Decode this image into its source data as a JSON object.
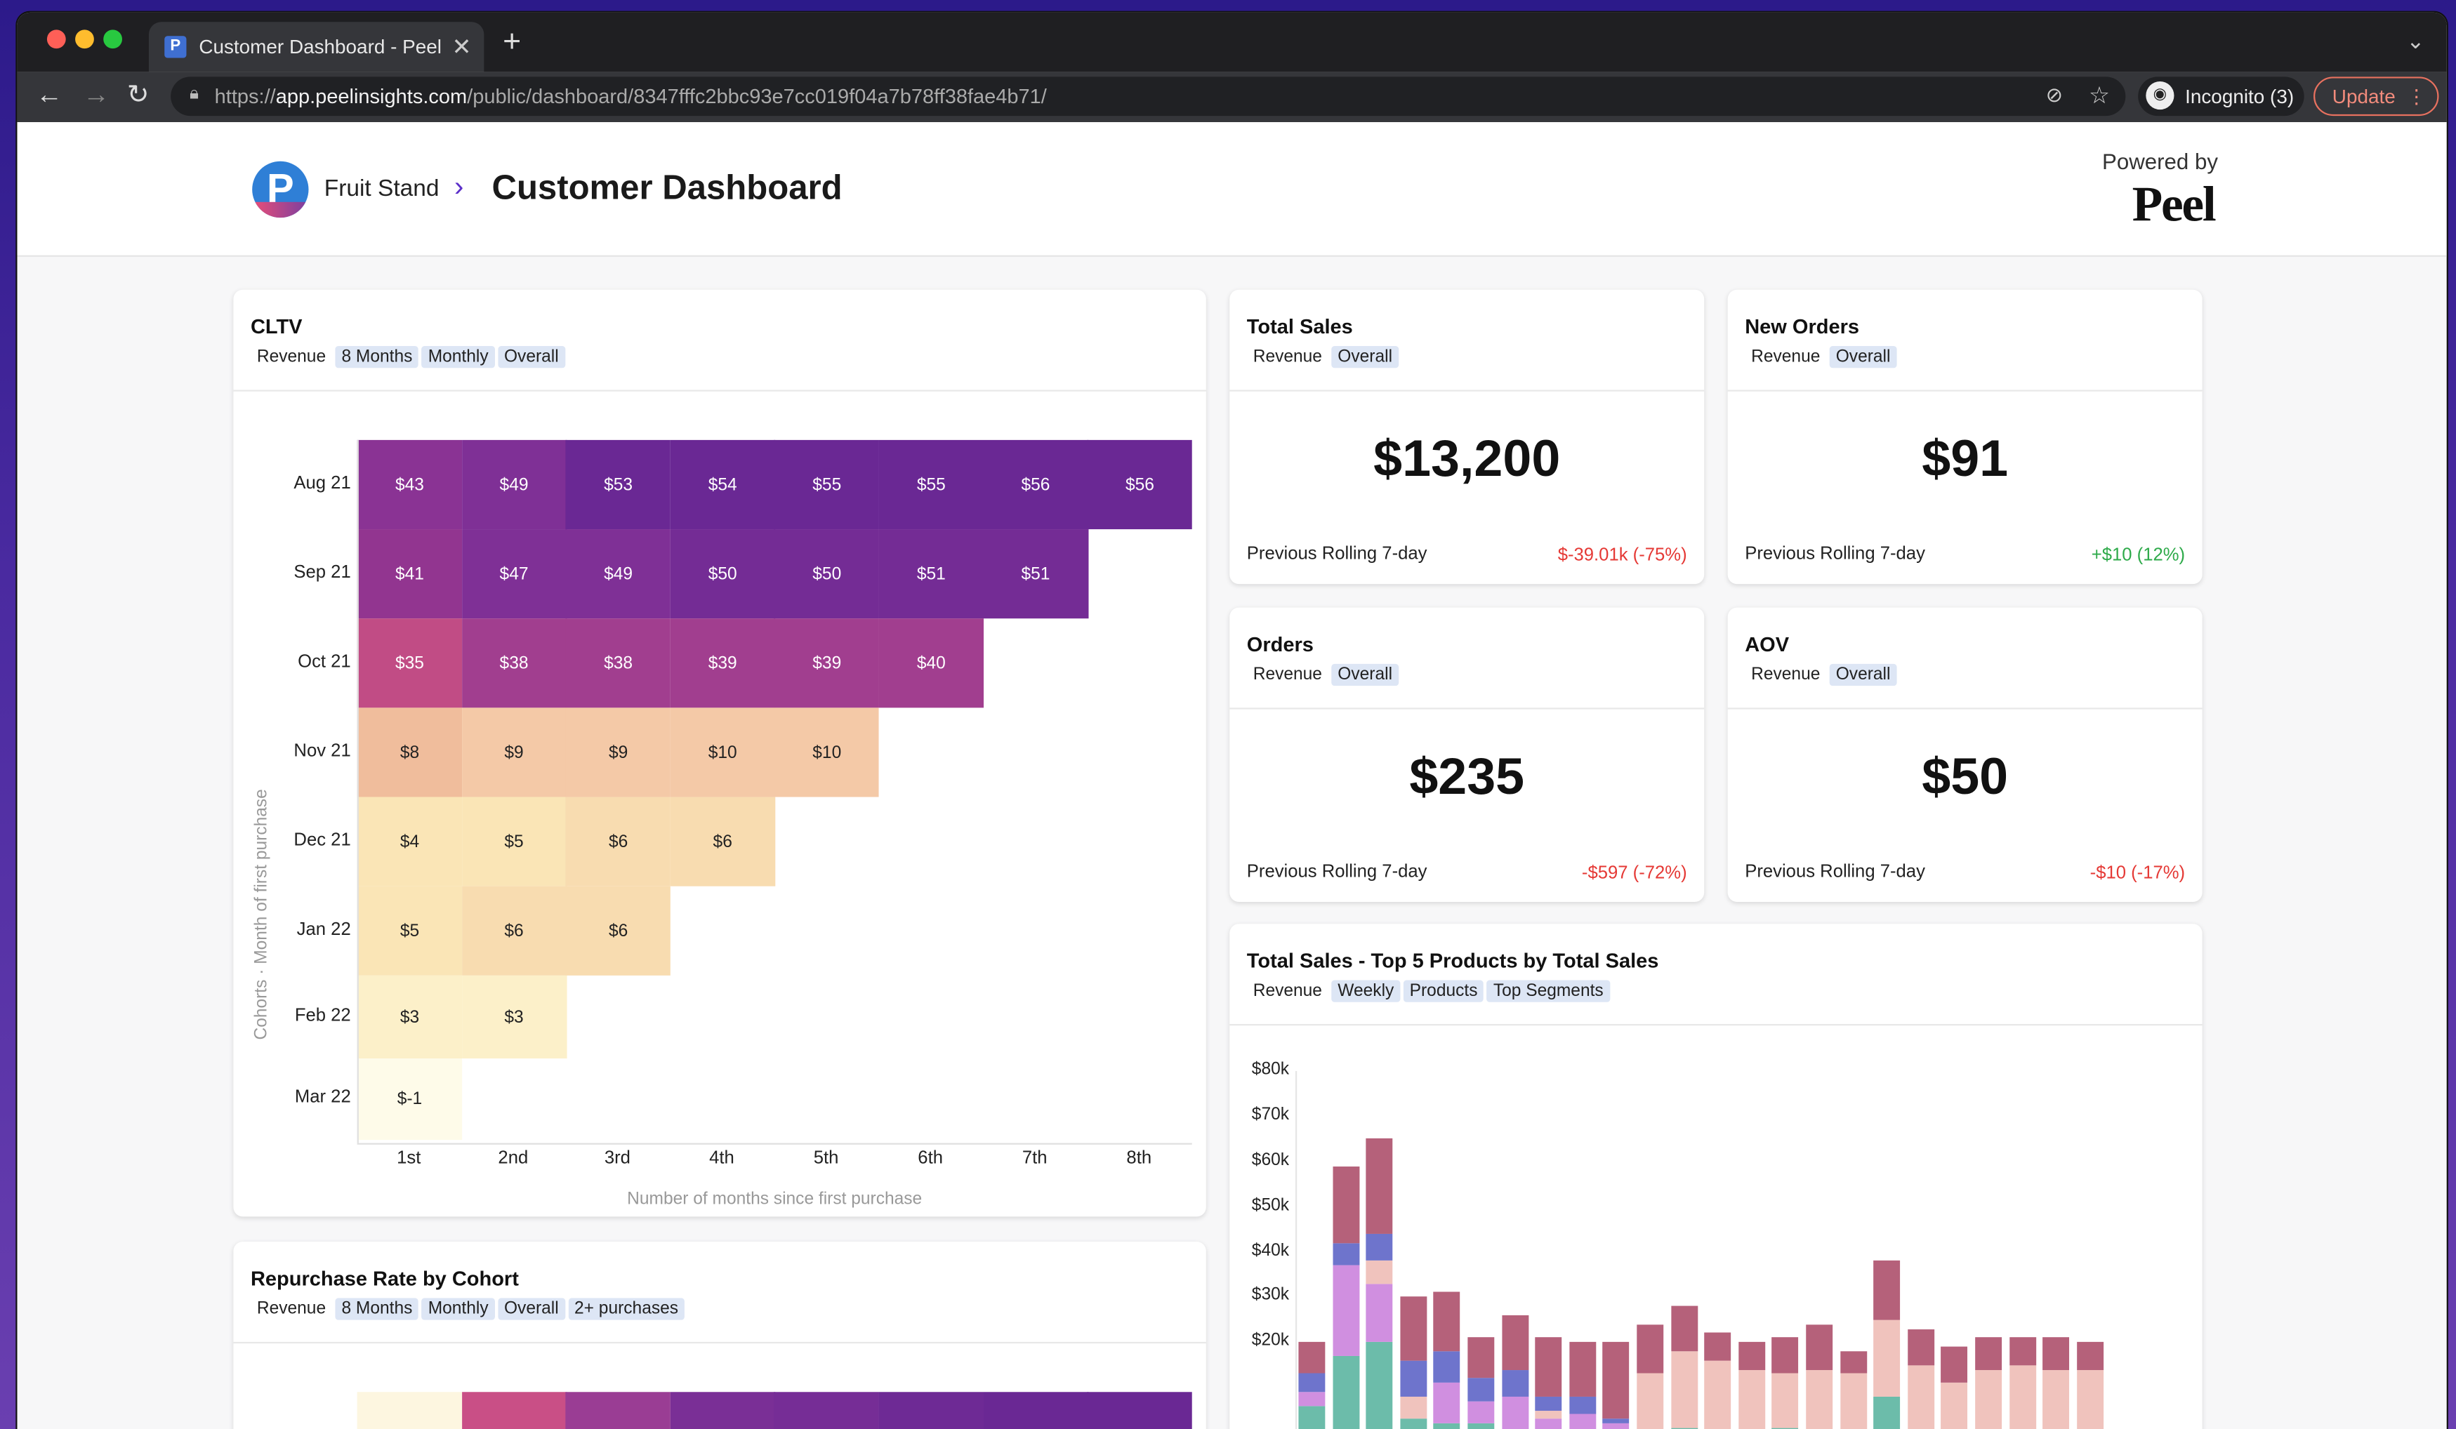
{
  "browser": {
    "tab_title": "Customer Dashboard - Peel",
    "favicon_letter": "P",
    "url_host": "app.peelinsights.com",
    "url_prefix": "https://",
    "url_path": "/public/dashboard/8347fffc2bbc93e7cc019f04a7b78ff38fae4b71/",
    "incognito_label": "Incognito (3)",
    "update_label": "Update"
  },
  "header": {
    "logo_letter": "P",
    "breadcrumb": "Fruit Stand",
    "title": "Customer Dashboard",
    "powered_by": "Powered by",
    "brand": "Peel"
  },
  "cltv": {
    "title": "CLTV",
    "tags": [
      "Revenue",
      "8 Months",
      "Monthly",
      "Overall"
    ],
    "y_axis_label": "Cohorts · Month of first purchase",
    "x_axis_label": "Number of months since first purchase",
    "columns": [
      "1st",
      "2nd",
      "3rd",
      "4th",
      "5th",
      "6th",
      "7th",
      "8th"
    ],
    "rows": [
      {
        "label": "Aug 21",
        "values": [
          "$43",
          "$49",
          "$53",
          "$54",
          "$55",
          "$55",
          "$56",
          "$56"
        ],
        "nums": [
          43,
          49,
          53,
          54,
          55,
          55,
          56,
          56
        ]
      },
      {
        "label": "Sep 21",
        "values": [
          "$41",
          "$47",
          "$49",
          "$50",
          "$50",
          "$51",
          "$51"
        ],
        "nums": [
          41,
          47,
          49,
          50,
          50,
          51,
          51
        ]
      },
      {
        "label": "Oct 21",
        "values": [
          "$35",
          "$38",
          "$38",
          "$39",
          "$39",
          "$40"
        ],
        "nums": [
          35,
          38,
          38,
          39,
          39,
          40
        ]
      },
      {
        "label": "Nov 21",
        "values": [
          "$8",
          "$9",
          "$9",
          "$10",
          "$10"
        ],
        "nums": [
          8,
          9,
          9,
          10,
          10
        ]
      },
      {
        "label": "Dec 21",
        "values": [
          "$4",
          "$5",
          "$6",
          "$6"
        ],
        "nums": [
          4,
          5,
          6,
          6
        ]
      },
      {
        "label": "Jan 22",
        "values": [
          "$5",
          "$6",
          "$6"
        ],
        "nums": [
          5,
          6,
          6
        ]
      },
      {
        "label": "Feb 22",
        "values": [
          "$3",
          "$3"
        ],
        "nums": [
          3,
          3
        ]
      },
      {
        "label": "Mar 22",
        "values": [
          "$-1"
        ],
        "nums": [
          -1
        ]
      }
    ]
  },
  "kpis": [
    {
      "title": "Total Sales",
      "tags": [
        "Revenue",
        "Overall"
      ],
      "value": "$13,200",
      "prev_label": "Previous Rolling 7-day",
      "delta": "$-39.01k (-75%)",
      "delta_sign": "neg"
    },
    {
      "title": "New Orders",
      "tags": [
        "Revenue",
        "Overall"
      ],
      "value": "$91",
      "prev_label": "Previous Rolling 7-day",
      "delta": "+$10 (12%)",
      "delta_sign": "pos"
    },
    {
      "title": "Orders",
      "tags": [
        "Revenue",
        "Overall"
      ],
      "value": "$235",
      "prev_label": "Previous Rolling 7-day",
      "delta": "-$597 (-72%)",
      "delta_sign": "neg"
    },
    {
      "title": "AOV",
      "tags": [
        "Revenue",
        "Overall"
      ],
      "value": "$50",
      "prev_label": "Previous Rolling 7-day",
      "delta": "-$10 (-17%)",
      "delta_sign": "neg"
    }
  ],
  "repurchase": {
    "title": "Repurchase Rate by Cohort",
    "tags": [
      "Revenue",
      "8 Months",
      "Monthly",
      "Overall",
      "2+ purchases"
    ],
    "first_row_colors": [
      "#fdf6e0",
      "#c94f86",
      "#9a3d94",
      "#7a2f96",
      "#762d96",
      "#6e2a95",
      "#6a2894",
      "#6a2894"
    ]
  },
  "top_products": {
    "title": "Total Sales - Top 5 Products by Total Sales",
    "tags": [
      "Revenue",
      "Weekly",
      "Products",
      "Top Segments"
    ]
  },
  "chart_data": {
    "type": "bar",
    "stacked": true,
    "title": "Total Sales - Top 5 Products by Total Sales",
    "yticks": [
      "$80k",
      "$70k",
      "$60k",
      "$50k",
      "$40k",
      "$30k",
      "$20k"
    ],
    "ylim": [
      0,
      80000
    ],
    "grid": false,
    "series": [
      {
        "color": "#b5617a",
        "values": [
          7,
          17,
          21,
          14,
          13,
          9,
          12,
          13,
          12,
          17,
          11,
          10,
          6,
          6,
          8,
          10,
          5,
          13,
          8,
          8,
          7,
          6,
          7,
          6
        ]
      },
      {
        "color": "#6e74cc",
        "values": [
          4,
          5,
          6,
          8,
          7,
          5,
          6,
          3,
          4,
          1,
          0,
          0,
          0,
          0,
          0,
          0,
          0,
          0,
          0,
          0,
          0,
          0,
          0,
          0
        ]
      },
      {
        "color": "#f0c3bd",
        "values": [
          0,
          0,
          5,
          5,
          0,
          0,
          0,
          2,
          0,
          0,
          13,
          17,
          16,
          14,
          12,
          14,
          13,
          17,
          15,
          11,
          14,
          15,
          14,
          14
        ]
      },
      {
        "color": "#d08fe0",
        "values": [
          3,
          20,
          13,
          0,
          9,
          5,
          8,
          3,
          4,
          2,
          0,
          0,
          0,
          0,
          0,
          0,
          0,
          0,
          0,
          0,
          0,
          0,
          0,
          0
        ]
      },
      {
        "color": "#6cbcaa",
        "values": [
          6,
          17,
          20,
          3,
          2,
          2,
          0,
          0,
          0,
          0,
          0,
          1,
          0,
          0,
          1,
          0,
          0,
          8,
          0,
          0,
          0,
          0,
          0,
          0
        ]
      }
    ]
  }
}
